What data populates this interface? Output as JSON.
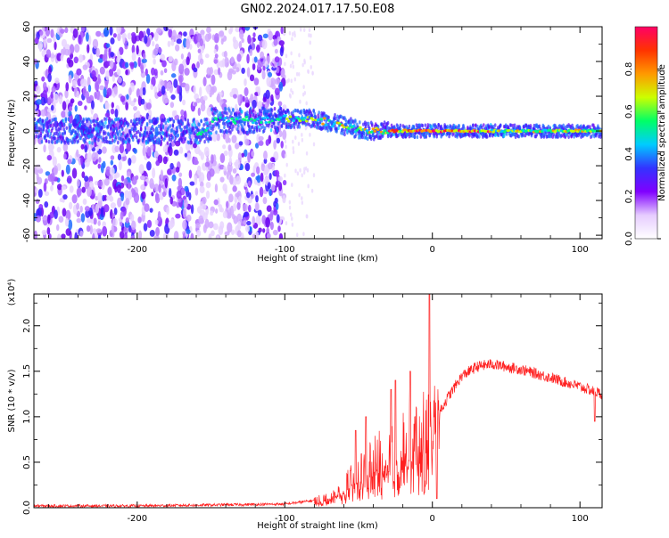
{
  "title": "GN02.2024.017.17.50.E08",
  "colorbar": {
    "label": "Normalized spectral amplitude",
    "ticks": [
      "0.0",
      "0.2",
      "0.4",
      "0.6",
      "0.8"
    ],
    "tick_values": [
      0.0,
      0.2,
      0.4,
      0.6,
      0.8
    ],
    "range": [
      0,
      1
    ],
    "colors": [
      "#ffffff",
      "#e6ccff",
      "#8000ff",
      "#3333ff",
      "#00ccff",
      "#00ff66",
      "#ccff00",
      "#ff9900",
      "#ff3300",
      "#ff0066"
    ]
  },
  "chart_data": [
    {
      "type": "heatmap",
      "title": "",
      "xlabel": "Height of straight line (km)",
      "ylabel": "Frequency (Hz)",
      "xlim": [
        -270,
        115
      ],
      "ylim": [
        -62,
        60
      ],
      "xticks": [
        -200,
        -100,
        0,
        100
      ],
      "xtick_labels": [
        "-200",
        "-100",
        "0",
        "100"
      ],
      "yticks": [
        -60,
        -40,
        -20,
        0,
        20,
        40,
        60
      ],
      "ytick_labels": [
        "-60",
        "-40",
        "-20",
        "0",
        "20",
        "40",
        "60"
      ],
      "band_center": [
        {
          "x": -150,
          "y": 6
        },
        {
          "x": -125,
          "y": 6
        },
        {
          "x": -100,
          "y": 7
        },
        {
          "x": -80,
          "y": 7
        },
        {
          "x": -60,
          "y": 3
        },
        {
          "x": -45,
          "y": 0
        },
        {
          "x": -30,
          "y": 0
        },
        {
          "x": 0,
          "y": 0
        },
        {
          "x": 50,
          "y": 0
        },
        {
          "x": 115,
          "y": 0
        }
      ],
      "noise_region_x": [
        -270,
        -100
      ]
    },
    {
      "type": "line",
      "title": "",
      "xlabel": "Height of straight line (km)",
      "ylabel": "SNR (10 * v/v)",
      "y_scale_note": "(x10⁴)",
      "series_color": "#ff2020",
      "xlim": [
        -270,
        115
      ],
      "ylim": [
        0,
        2.35
      ],
      "xticks": [
        -200,
        -100,
        0,
        100
      ],
      "xtick_labels": [
        "-200",
        "-100",
        "0",
        "100"
      ],
      "yticks": [
        0.0,
        0.5,
        1.0,
        1.5,
        2.0
      ],
      "ytick_labels": [
        "0.0",
        "0.5",
        "1.0",
        "1.5",
        "2.0"
      ],
      "envelope": [
        {
          "x": -270,
          "y": 0.02
        },
        {
          "x": -200,
          "y": 0.02
        },
        {
          "x": -150,
          "y": 0.03
        },
        {
          "x": -100,
          "y": 0.04
        },
        {
          "x": -80,
          "y": 0.08
        },
        {
          "x": -70,
          "y": 0.12
        },
        {
          "x": -60,
          "y": 0.25
        },
        {
          "x": -50,
          "y": 0.4
        },
        {
          "x": -40,
          "y": 0.55
        },
        {
          "x": -30,
          "y": 0.65
        },
        {
          "x": -20,
          "y": 0.75
        },
        {
          "x": -10,
          "y": 0.85
        },
        {
          "x": 0,
          "y": 0.9
        },
        {
          "x": 10,
          "y": 1.2
        },
        {
          "x": 20,
          "y": 1.45
        },
        {
          "x": 30,
          "y": 1.55
        },
        {
          "x": 40,
          "y": 1.58
        },
        {
          "x": 60,
          "y": 1.52
        },
        {
          "x": 80,
          "y": 1.43
        },
        {
          "x": 100,
          "y": 1.33
        },
        {
          "x": 115,
          "y": 1.25
        }
      ],
      "spikes": [
        {
          "x": -52,
          "y": 0.85
        },
        {
          "x": -45,
          "y": 1.0
        },
        {
          "x": -28,
          "y": 1.3
        },
        {
          "x": -25,
          "y": 1.4
        },
        {
          "x": -15,
          "y": 1.5
        },
        {
          "x": -2,
          "y": 2.35
        },
        {
          "x": 3,
          "y": 0.1
        },
        {
          "x": 110,
          "y": 0.95
        }
      ]
    }
  ]
}
